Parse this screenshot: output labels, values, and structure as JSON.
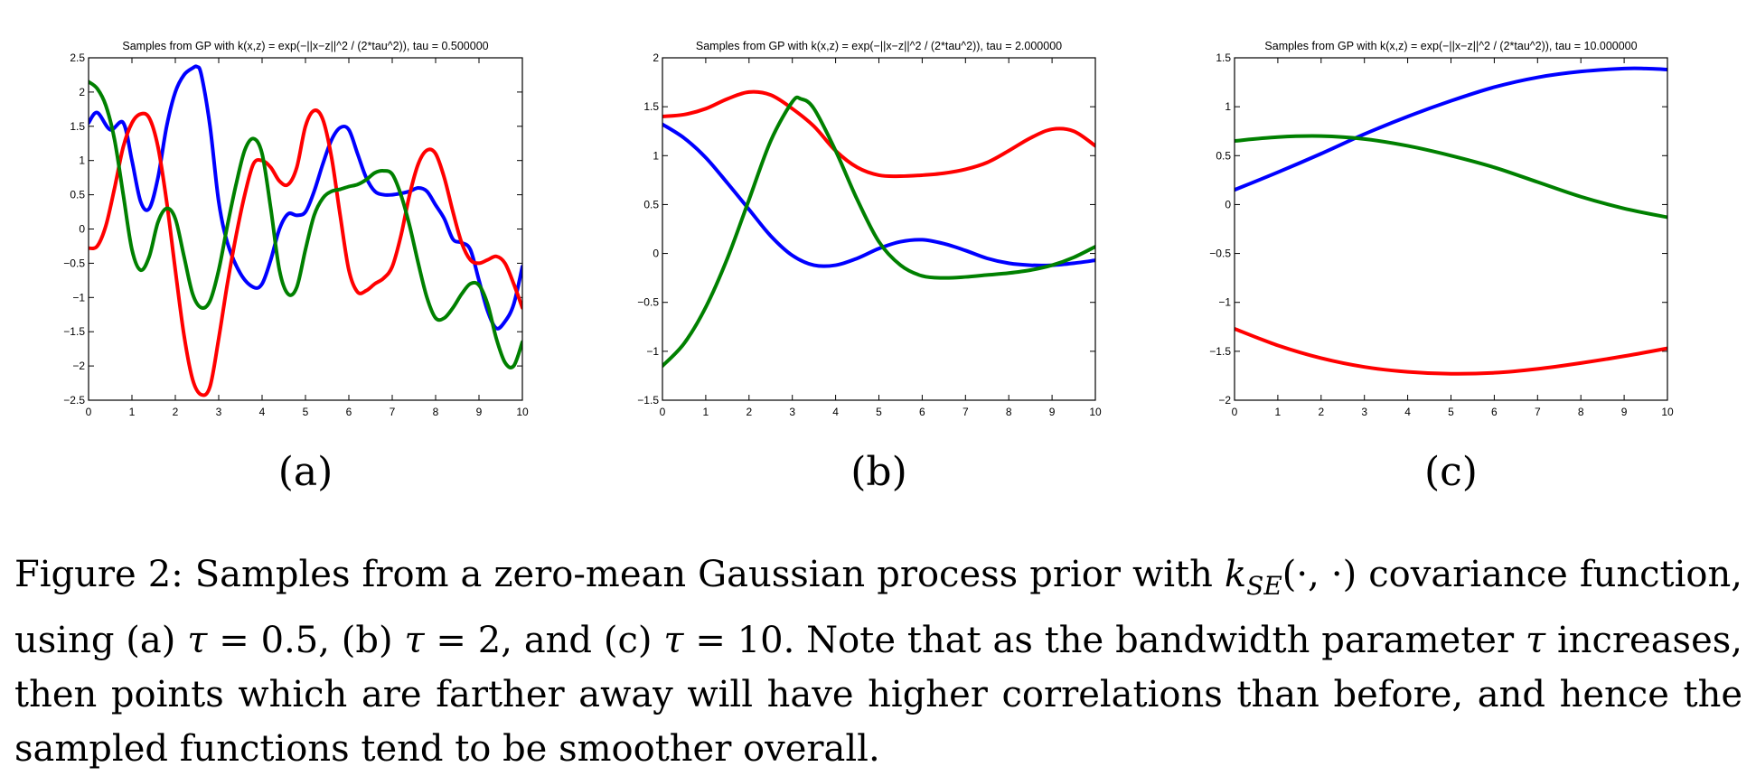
{
  "chart_data": [
    {
      "type": "line",
      "panel_label": "(a)",
      "title": "Samples from GP with k(x,z) = exp(−||x−z||^2 / (2*tau^2)), tau = 0.500000",
      "xlabel": "",
      "ylabel": "",
      "xlim": [
        0,
        10
      ],
      "ylim": [
        -2.5,
        2.5
      ],
      "xticks": [
        "0",
        "1",
        "2",
        "3",
        "4",
        "5",
        "6",
        "7",
        "8",
        "9",
        "10"
      ],
      "yticks": [
        "−2.5",
        "−2",
        "−1.5",
        "−1",
        "−0.5",
        "0",
        "0.5",
        "1",
        "1.5",
        "2",
        "2.5"
      ],
      "grid": false,
      "series": [
        {
          "color": "#0000ff",
          "x": [
            0,
            0.2,
            0.5,
            0.8,
            1.0,
            1.2,
            1.4,
            1.6,
            1.8,
            2.0,
            2.2,
            2.4,
            2.5,
            2.6,
            2.8,
            3.0,
            3.2,
            3.5,
            3.8,
            4.0,
            4.2,
            4.4,
            4.6,
            4.8,
            5.0,
            5.2,
            5.4,
            5.6,
            5.8,
            6.0,
            6.2,
            6.4,
            6.6,
            6.8,
            7.0,
            7.2,
            7.4,
            7.6,
            7.8,
            8.0,
            8.2,
            8.4,
            8.6,
            8.8,
            9.0,
            9.2,
            9.4,
            9.6,
            9.8,
            10
          ],
          "y": [
            1.55,
            1.7,
            1.45,
            1.55,
            1.0,
            0.4,
            0.3,
            0.75,
            1.5,
            2.0,
            2.25,
            2.35,
            2.37,
            2.25,
            1.5,
            0.4,
            -0.2,
            -0.65,
            -0.85,
            -0.8,
            -0.45,
            0.0,
            0.22,
            0.2,
            0.25,
            0.55,
            0.95,
            1.3,
            1.48,
            1.45,
            1.1,
            0.75,
            0.55,
            0.5,
            0.5,
            0.52,
            0.55,
            0.6,
            0.55,
            0.35,
            0.15,
            -0.15,
            -0.2,
            -0.3,
            -0.75,
            -1.2,
            -1.45,
            -1.35,
            -1.1,
            -0.55
          ]
        },
        {
          "color": "#ff0000",
          "x": [
            0,
            0.2,
            0.4,
            0.6,
            0.8,
            1.0,
            1.2,
            1.4,
            1.6,
            1.8,
            2.0,
            2.2,
            2.4,
            2.6,
            2.8,
            3.0,
            3.2,
            3.4,
            3.6,
            3.8,
            4.0,
            4.2,
            4.4,
            4.6,
            4.8,
            5.0,
            5.2,
            5.4,
            5.6,
            5.8,
            6.0,
            6.2,
            6.4,
            6.6,
            6.8,
            7.0,
            7.2,
            7.4,
            7.6,
            7.8,
            8.0,
            8.2,
            8.4,
            8.6,
            8.8,
            9.0,
            9.2,
            9.4,
            9.6,
            9.8,
            10
          ],
          "y": [
            -0.28,
            -0.25,
            0.05,
            0.6,
            1.2,
            1.55,
            1.68,
            1.62,
            1.2,
            0.4,
            -0.6,
            -1.55,
            -2.2,
            -2.42,
            -2.3,
            -1.6,
            -0.8,
            -0.1,
            0.5,
            0.95,
            1.0,
            0.9,
            0.7,
            0.65,
            0.9,
            1.5,
            1.73,
            1.6,
            1.05,
            0.2,
            -0.6,
            -0.92,
            -0.9,
            -0.8,
            -0.72,
            -0.55,
            -0.1,
            0.5,
            0.95,
            1.15,
            1.1,
            0.75,
            0.25,
            -0.2,
            -0.45,
            -0.5,
            -0.45,
            -0.4,
            -0.5,
            -0.8,
            -1.15
          ]
        },
        {
          "color": "#008000",
          "x": [
            0,
            0.2,
            0.4,
            0.6,
            0.8,
            1.0,
            1.2,
            1.4,
            1.6,
            1.8,
            2.0,
            2.2,
            2.4,
            2.6,
            2.8,
            3.0,
            3.2,
            3.4,
            3.6,
            3.8,
            4.0,
            4.2,
            4.4,
            4.6,
            4.8,
            5.0,
            5.2,
            5.4,
            5.6,
            5.8,
            6.0,
            6.2,
            6.4,
            6.6,
            6.8,
            7.0,
            7.2,
            7.4,
            7.6,
            7.8,
            8.0,
            8.2,
            8.4,
            8.6,
            8.8,
            9.0,
            9.2,
            9.4,
            9.6,
            9.8,
            10
          ],
          "y": [
            2.15,
            2.05,
            1.8,
            1.3,
            0.5,
            -0.3,
            -0.6,
            -0.4,
            0.1,
            0.3,
            0.15,
            -0.4,
            -0.95,
            -1.15,
            -1.05,
            -0.6,
            0.05,
            0.65,
            1.15,
            1.32,
            1.1,
            0.3,
            -0.6,
            -0.95,
            -0.85,
            -0.3,
            0.2,
            0.45,
            0.55,
            0.58,
            0.62,
            0.65,
            0.72,
            0.82,
            0.85,
            0.8,
            0.5,
            0.05,
            -0.5,
            -1.0,
            -1.3,
            -1.3,
            -1.15,
            -0.95,
            -0.8,
            -0.82,
            -1.1,
            -1.6,
            -1.95,
            -2.0,
            -1.65
          ]
        }
      ]
    },
    {
      "type": "line",
      "panel_label": "(b)",
      "title": "Samples from GP with k(x,z) = exp(−||x−z||^2 / (2*tau^2)), tau = 2.000000",
      "xlabel": "",
      "ylabel": "",
      "xlim": [
        0,
        10
      ],
      "ylim": [
        -1.5,
        2
      ],
      "xticks": [
        "0",
        "1",
        "2",
        "3",
        "4",
        "5",
        "6",
        "7",
        "8",
        "9",
        "10"
      ],
      "yticks": [
        "−1.5",
        "−1",
        "−0.5",
        "0",
        "0.5",
        "1",
        "1.5",
        "2"
      ],
      "grid": false,
      "series": [
        {
          "color": "#ff0000",
          "x": [
            0,
            0.5,
            1.0,
            1.5,
            2.0,
            2.5,
            3.0,
            3.5,
            4.0,
            4.5,
            5.0,
            5.5,
            6.0,
            6.5,
            7.0,
            7.5,
            8.0,
            8.5,
            9.0,
            9.5,
            10
          ],
          "y": [
            1.4,
            1.42,
            1.48,
            1.58,
            1.65,
            1.62,
            1.48,
            1.3,
            1.05,
            0.88,
            0.8,
            0.79,
            0.8,
            0.82,
            0.86,
            0.93,
            1.05,
            1.18,
            1.27,
            1.25,
            1.1
          ]
        },
        {
          "color": "#0000ff",
          "x": [
            0,
            0.5,
            1.0,
            1.5,
            2.0,
            2.5,
            3.0,
            3.5,
            4.0,
            4.5,
            5.0,
            5.5,
            6.0,
            6.5,
            7.0,
            7.5,
            8.0,
            8.5,
            9.0,
            9.5,
            10
          ],
          "y": [
            1.32,
            1.18,
            0.98,
            0.72,
            0.45,
            0.18,
            -0.02,
            -0.12,
            -0.12,
            -0.05,
            0.05,
            0.12,
            0.14,
            0.1,
            0.03,
            -0.05,
            -0.1,
            -0.12,
            -0.12,
            -0.1,
            -0.07
          ]
        },
        {
          "color": "#008000",
          "x": [
            0,
            0.5,
            1.0,
            1.5,
            2.0,
            2.5,
            3.0,
            3.2,
            3.5,
            4.0,
            4.5,
            5.0,
            5.5,
            6.0,
            6.5,
            7.0,
            7.5,
            8.0,
            8.5,
            9.0,
            9.5,
            10
          ],
          "y": [
            -1.15,
            -0.92,
            -0.55,
            -0.05,
            0.55,
            1.15,
            1.55,
            1.58,
            1.48,
            1.05,
            0.55,
            0.12,
            -0.12,
            -0.23,
            -0.25,
            -0.24,
            -0.22,
            -0.2,
            -0.17,
            -0.12,
            -0.04,
            0.07
          ]
        }
      ]
    },
    {
      "type": "line",
      "panel_label": "(c)",
      "title": "Samples from GP with k(x,z) = exp(−||x−z||^2 / (2*tau^2)), tau = 10.000000",
      "xlabel": "",
      "ylabel": "",
      "xlim": [
        0,
        10
      ],
      "ylim": [
        -2,
        1.5
      ],
      "xticks": [
        "0",
        "1",
        "2",
        "3",
        "4",
        "5",
        "6",
        "7",
        "8",
        "9",
        "10"
      ],
      "yticks": [
        "−2",
        "−1.5",
        "−1",
        "−0.5",
        "0",
        "0.5",
        "1",
        "1.5"
      ],
      "grid": false,
      "series": [
        {
          "color": "#0000ff",
          "x": [
            0,
            1,
            2,
            3,
            4,
            5,
            6,
            7,
            8,
            9,
            9.5,
            10
          ],
          "y": [
            0.15,
            0.33,
            0.52,
            0.72,
            0.9,
            1.06,
            1.2,
            1.3,
            1.36,
            1.39,
            1.39,
            1.38
          ]
        },
        {
          "color": "#008000",
          "x": [
            0,
            1,
            2,
            3,
            4,
            5,
            6,
            7,
            8,
            9,
            10
          ],
          "y": [
            0.65,
            0.69,
            0.7,
            0.67,
            0.6,
            0.5,
            0.38,
            0.23,
            0.08,
            -0.04,
            -0.13
          ]
        },
        {
          "color": "#ff0000",
          "x": [
            0,
            1,
            2,
            3,
            4,
            5,
            6,
            7,
            8,
            9,
            10
          ],
          "y": [
            -1.27,
            -1.44,
            -1.57,
            -1.66,
            -1.71,
            -1.73,
            -1.72,
            -1.68,
            -1.62,
            -1.55,
            -1.47
          ]
        }
      ]
    }
  ],
  "caption": {
    "prefix": "Figure 2: Samples from a zero-mean Gaussian process prior with ",
    "kernel_symbol": "k",
    "kernel_subscript": "SE",
    "kernel_args": "(·, ·)",
    "after_kernel": " covariance function, using (a) ",
    "tau_symbol": "τ",
    "eq_a": " = 0.5, (b) ",
    "eq_b": " = 2, and (c) ",
    "eq_c": " = 10.  Note that as the bandwidth parameter ",
    "rest": " increases, then points which are farther away will have higher correlations than before, and hence the sampled functions tend to be smoother overall."
  }
}
